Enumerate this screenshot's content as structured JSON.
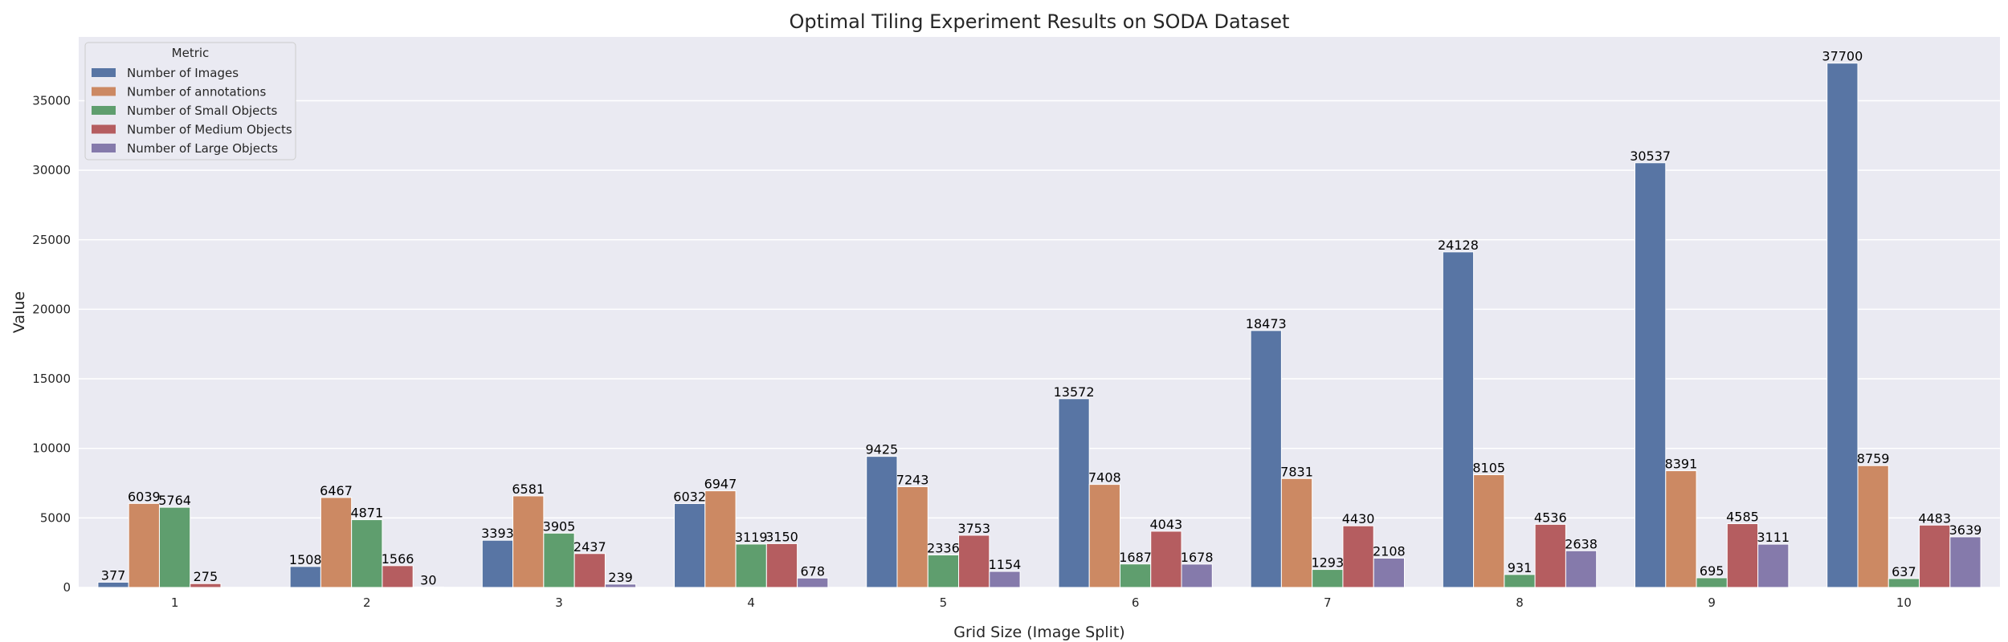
{
  "chart_data": {
    "type": "bar",
    "title": "Optimal Tiling Experiment Results on SODA Dataset",
    "xlabel": "Grid Size (Image Split)",
    "ylabel": "Value",
    "categories": [
      "1",
      "2",
      "3",
      "4",
      "5",
      "6",
      "7",
      "8",
      "9",
      "10"
    ],
    "ylim": [
      0,
      39585
    ],
    "yticks": [
      0,
      5000,
      10000,
      15000,
      20000,
      25000,
      30000,
      35000
    ],
    "grid": true,
    "legend": {
      "title": "Metric",
      "position": "top-left"
    },
    "series": [
      {
        "name": "Number of Images",
        "color": "#5875a4",
        "values": [
          377,
          1508,
          3393,
          6032,
          9425,
          13572,
          18473,
          24128,
          30537,
          37700
        ]
      },
      {
        "name": "Number of annotations",
        "color": "#cc8963",
        "values": [
          6039,
          6467,
          6581,
          6947,
          7243,
          7408,
          7831,
          8105,
          8391,
          8759
        ]
      },
      {
        "name": "Number of Small Objects",
        "color": "#5f9e6e",
        "values": [
          5764,
          4871,
          3905,
          3119,
          2336,
          1687,
          1293,
          931,
          695,
          637
        ]
      },
      {
        "name": "Number of Medium Objects",
        "color": "#b55d60",
        "values": [
          275,
          1566,
          2437,
          3150,
          3753,
          4043,
          4430,
          4536,
          4585,
          4483
        ]
      },
      {
        "name": "Number of Large Objects",
        "color": "#857aab",
        "values": [
          null,
          30,
          239,
          678,
          1154,
          1678,
          2108,
          2638,
          3111,
          3639
        ]
      }
    ]
  }
}
